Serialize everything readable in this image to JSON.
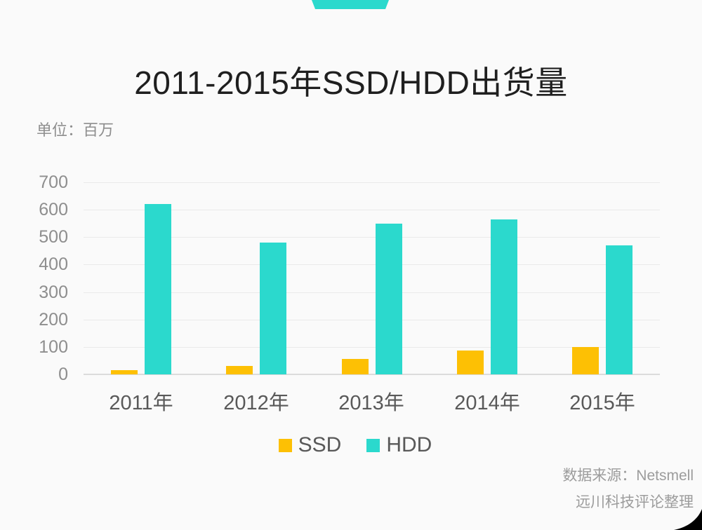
{
  "header": {
    "title": "2011-2015年SSD/HDD出货量",
    "unit_label": "单位：百万"
  },
  "chart_data": {
    "type": "bar",
    "categories": [
      "2011年",
      "2012年",
      "2013年",
      "2014年",
      "2015年"
    ],
    "series": [
      {
        "name": "SSD",
        "color": "#fdc004",
        "values": [
          15,
          30,
          57,
          87,
          100
        ]
      },
      {
        "name": "HDD",
        "color": "#2bd9cd",
        "values": [
          620,
          480,
          550,
          565,
          470
        ]
      }
    ],
    "title": "2011-2015年SSD/HDD出货量",
    "xlabel": "",
    "ylabel": "百万",
    "ylim": [
      0,
      700
    ],
    "ytick_step": 100,
    "grid": true,
    "legend_position": "bottom"
  },
  "footer": {
    "source_line1": "数据来源：Netsmell",
    "source_line2": "远川科技评论整理"
  },
  "colors": {
    "accent_teal": "#2bd9cd",
    "accent_orange": "#fdc004",
    "background": "#fafafa",
    "gridline": "#eaeaea",
    "axis_text": "#8e8e8e",
    "category_text": "#595959"
  }
}
